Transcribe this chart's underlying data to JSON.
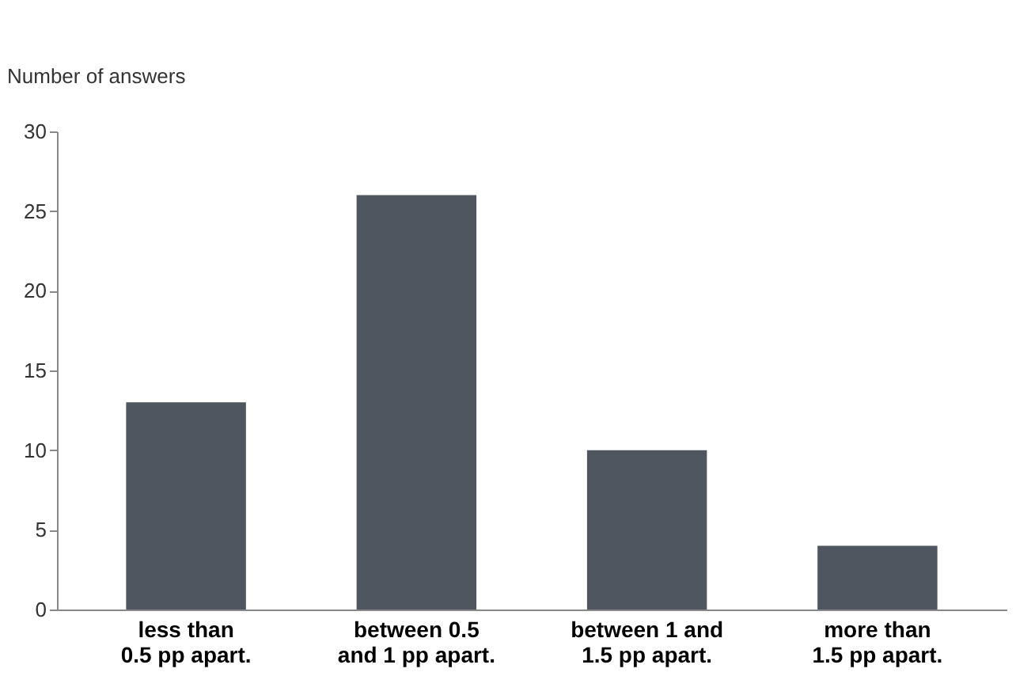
{
  "chart_data": {
    "type": "bar",
    "ylabel": "Number of answers",
    "categories": [
      "less than 0.5 pp apart.",
      "between 0.5 and 1 pp apart.",
      "between 1 and 1.5 pp apart.",
      "more than 1.5 pp apart."
    ],
    "values": [
      13,
      26,
      10,
      4
    ],
    "color": "#4f5660",
    "ylim": [
      0,
      30
    ],
    "yticks": [
      0,
      5,
      10,
      15,
      20,
      25,
      30
    ],
    "grid": false
  }
}
